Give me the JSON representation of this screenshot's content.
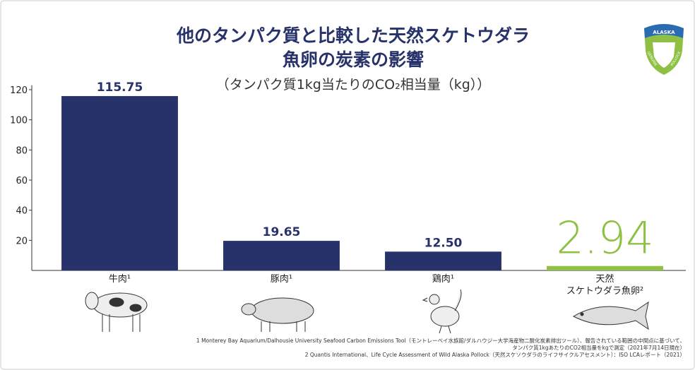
{
  "chart_data": {
    "type": "bar",
    "title": "他のタンパク質と比較した天然スケトウダラ\n魚卵の炭素の影響",
    "subtitle": "（タンパク質1kg当たりのCO₂相当量（kg））",
    "categories": [
      "牛肉¹",
      "豚肉¹",
      "鶏肉¹",
      "天然\nスケトウダラ魚卵²"
    ],
    "values": [
      115.75,
      19.65,
      12.5,
      2.94
    ],
    "value_labels": [
      "115.75",
      "19.65",
      "12.50",
      "2.94"
    ],
    "colors": [
      "#27326b",
      "#27326b",
      "#27326b",
      "#8dc043"
    ],
    "ylim": [
      0,
      123
    ],
    "yticks": [
      20,
      40,
      60,
      80,
      100,
      120
    ],
    "grid": false,
    "footnotes": [
      "1 Monterey Bay Aquarium/Dalhousie University Seafood Carbon Emissions Tool（モントレーベイ水族館/ダルハウジー大学海産物二酸化炭素排出ツール）、報告されている範囲の中間点に基づいて、\nタンパク質1kgあたりのCO2相当量をkgで測定（2021年7月14日現在）",
      "2 Quantis International、Life Cycle Assessment of Wild Alaska Pollock（天然スケソウダラのライフサイクルアセスメント）：ISO LCAレポート（2021）"
    ],
    "logo": {
      "top": "ALASKA",
      "left": "GENUINE",
      "right": "POLLOCK"
    }
  }
}
